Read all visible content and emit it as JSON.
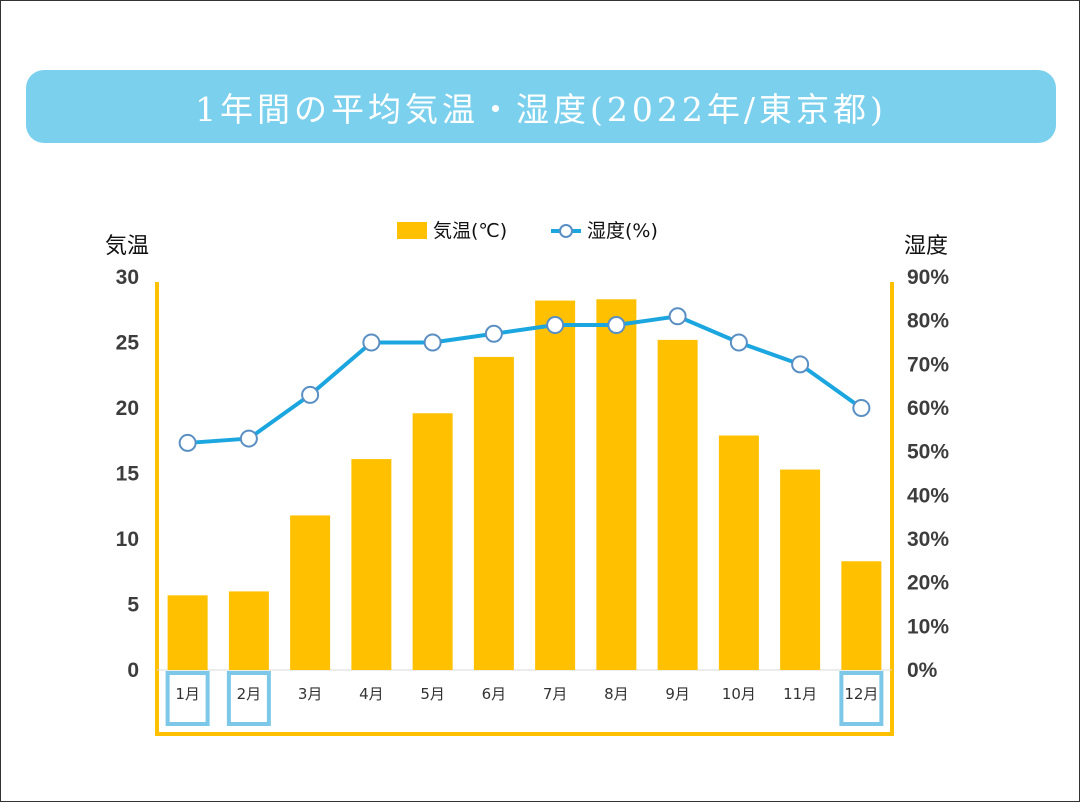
{
  "title": "1年間の平均気温・湿度(2022年/東京都)",
  "colors": {
    "title_bg": "#7bd0ee",
    "bar": "#ffc000",
    "line": "#1ba6e0",
    "marker_stroke": "#5a8fc4",
    "frame": "#ffc000",
    "highlight": "#7dc8e8"
  },
  "chart_data": {
    "type": "bar+line",
    "categories": [
      "1月",
      "2月",
      "3月",
      "4月",
      "5月",
      "6月",
      "7月",
      "8月",
      "9月",
      "10月",
      "11月",
      "12月"
    ],
    "series": [
      {
        "name": "気温(℃)",
        "type": "bar",
        "axis": "left",
        "values": [
          5.7,
          6.0,
          11.8,
          16.1,
          19.6,
          23.9,
          28.2,
          28.3,
          25.2,
          17.9,
          15.3,
          8.3
        ]
      },
      {
        "name": "湿度(%)",
        "type": "line",
        "axis": "right",
        "values": [
          52,
          53,
          63,
          75,
          75,
          77,
          79,
          79,
          81,
          75,
          70,
          60
        ]
      }
    ],
    "y_left": {
      "label": "気温",
      "min": 0,
      "max": 30,
      "ticks": [
        "0",
        "5",
        "10",
        "15",
        "20",
        "25",
        "30"
      ]
    },
    "y_right": {
      "label": "湿度",
      "min": 0,
      "max": 90,
      "ticks": [
        "0%",
        "10%",
        "20%",
        "30%",
        "40%",
        "50%",
        "60%",
        "70%",
        "80%",
        "90%"
      ]
    },
    "highlighted_months": [
      "1月",
      "2月",
      "12月"
    ],
    "legend_position": "top"
  }
}
